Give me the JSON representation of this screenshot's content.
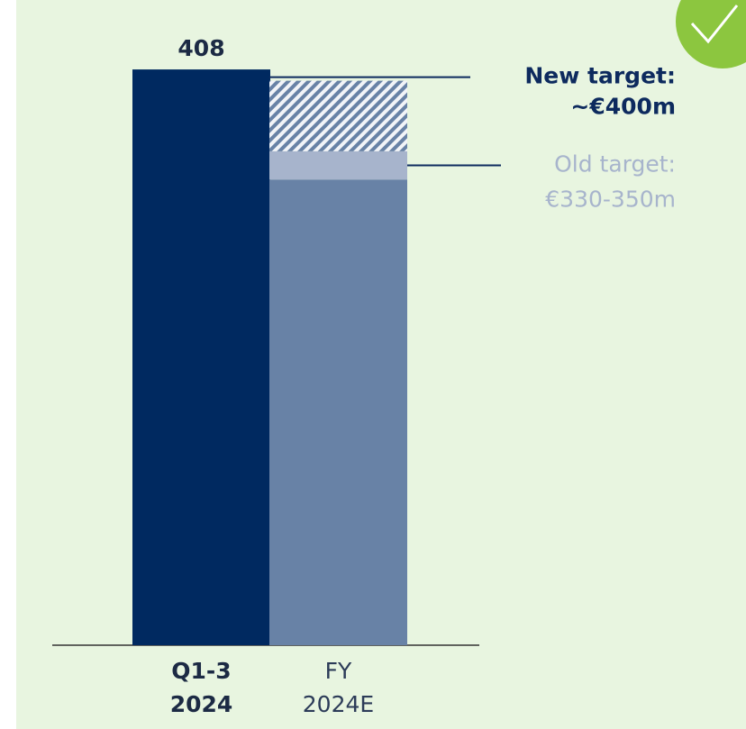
{
  "chart_data": {
    "type": "bar",
    "categories": [
      [
        "Q1-3",
        "2024"
      ],
      [
        "FY",
        "2024E"
      ]
    ],
    "values": [
      408,
      330
    ],
    "colors": [
      "#002960",
      "#6882a6"
    ],
    "old_target": {
      "label": [
        "Old target:",
        "€330-350m"
      ],
      "high": 350,
      "color": "#a7b4cc"
    },
    "new_target": {
      "label": [
        "New target:",
        "~€400m"
      ],
      "value": 400,
      "color": "#6882a6"
    }
  }
}
